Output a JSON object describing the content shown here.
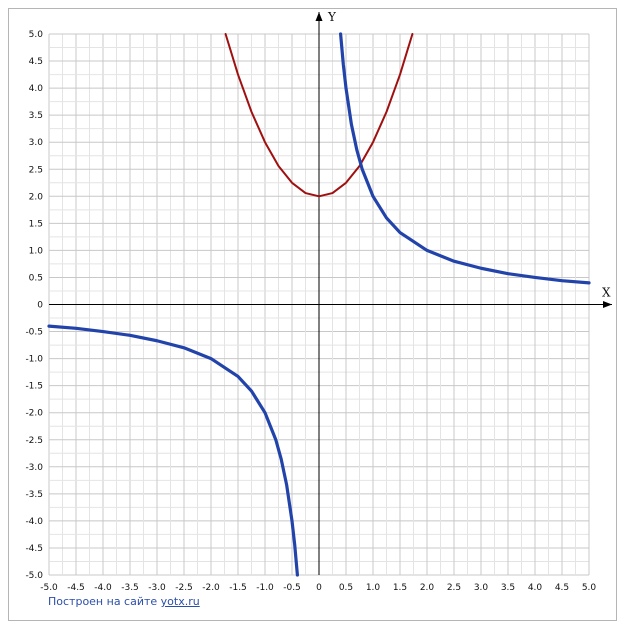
{
  "chart_data": {
    "type": "line",
    "title": "",
    "xlabel": "X",
    "ylabel": "Y",
    "xlim": [
      -5,
      5
    ],
    "ylim": [
      -5,
      5
    ],
    "grid": true,
    "x_ticks": [
      -5.0,
      -4.5,
      -4.0,
      -3.5,
      -3.0,
      -2.5,
      -2.0,
      -1.5,
      -1.0,
      -0.5,
      0,
      0.5,
      1.0,
      1.5,
      2.0,
      2.5,
      3.0,
      3.5,
      4.0,
      4.5,
      5.0
    ],
    "x_tick_labels": [
      "-5.0",
      "-4.5",
      "-4.0",
      "-3.5",
      "-3.0",
      "-2.5",
      "-2.0",
      "-1.5",
      "-1.0",
      "-0.5",
      "0",
      "0.5",
      "1.0",
      "1.5",
      "2.0",
      "2.5",
      "3.0",
      "3.5",
      "4.0",
      "4.5",
      "5.0"
    ],
    "y_ticks": [
      5.0,
      4.5,
      4.0,
      3.5,
      3.0,
      2.5,
      2.0,
      1.5,
      1.0,
      0.5,
      0,
      -0.5,
      -1.0,
      -1.5,
      -2.0,
      -2.5,
      -3.0,
      -3.5,
      -4.0,
      -4.5,
      -5.0
    ],
    "y_tick_labels": [
      "5.0",
      "4.5",
      "4.0",
      "3.5",
      "3.0",
      "2.5",
      "2.0",
      "1.5",
      "1.0",
      "0.5",
      "0",
      "-0.5",
      "-1.0",
      "-1.5",
      "-2.0",
      "-2.5",
      "-3.0",
      "-3.5",
      "-4.0",
      "-4.5",
      "-5.0"
    ],
    "series": [
      {
        "color": "#a01010",
        "x": [
          -1.73,
          -1.5,
          -1.25,
          -1.0,
          -0.75,
          -0.5,
          -0.25,
          0,
          0.25,
          0.5,
          0.75,
          1.0,
          1.25,
          1.5,
          1.73
        ],
        "y": [
          5.0,
          4.25,
          3.56,
          3.0,
          2.56,
          2.25,
          2.06,
          2.0,
          2.06,
          2.25,
          2.56,
          3.0,
          3.56,
          4.25,
          5.0
        ]
      },
      {
        "color": "#2244aa",
        "x": [
          0.4,
          0.45,
          0.5,
          0.6,
          0.7,
          0.8,
          1.0,
          1.25,
          1.5,
          2.0,
          2.5,
          3.0,
          3.5,
          4.0,
          4.5,
          5.0
        ],
        "y": [
          5.0,
          4.44,
          4.0,
          3.33,
          2.86,
          2.5,
          2.0,
          1.6,
          1.33,
          1.0,
          0.8,
          0.67,
          0.57,
          0.5,
          0.44,
          0.4
        ]
      },
      {
        "color": "#2244aa",
        "x": [
          -5.0,
          -4.5,
          -4.0,
          -3.5,
          -3.0,
          -2.5,
          -2.0,
          -1.5,
          -1.25,
          -1.0,
          -0.8,
          -0.7,
          -0.6,
          -0.5,
          -0.45,
          -0.4
        ],
        "y": [
          -0.4,
          -0.44,
          -0.5,
          -0.57,
          -0.67,
          -0.8,
          -1.0,
          -1.33,
          -1.6,
          -2.0,
          -2.5,
          -2.86,
          -3.33,
          -4.0,
          -4.44,
          -5.0
        ]
      }
    ]
  },
  "credit": {
    "prefix": "Построен на сайте ",
    "link": "yotx.ru"
  }
}
